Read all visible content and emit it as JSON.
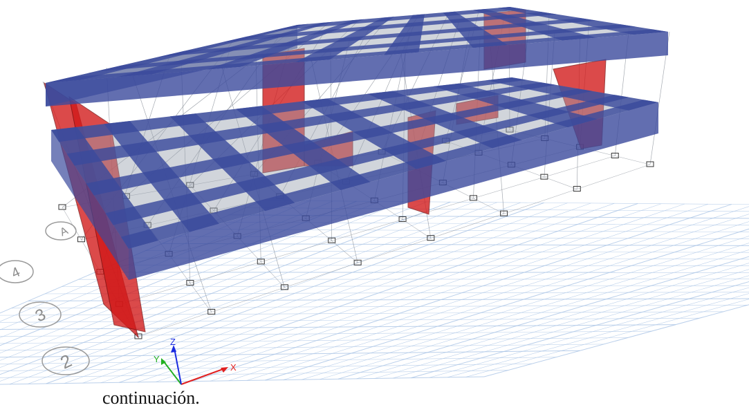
{
  "figure": {
    "grid_labels": [
      "2",
      "3",
      "4",
      "A"
    ],
    "axes": {
      "x_label": "X",
      "y_label": "Y",
      "z_label": "Z"
    },
    "colors": {
      "beam": "#3b4a9c",
      "slab": "#9aa2b0",
      "shear_wall": "#d21818",
      "grid_line": "#a9c4e6",
      "frame_line": "#7f8690",
      "x_axis": "#e02020",
      "y_axis": "#22b022",
      "z_axis": "#1a2be0"
    }
  },
  "caption": {
    "text": "continuación."
  }
}
